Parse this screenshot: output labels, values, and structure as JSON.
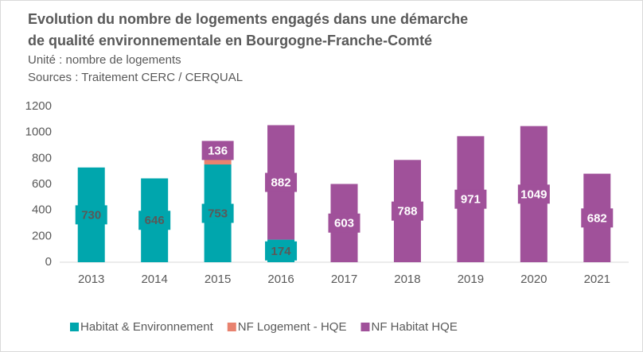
{
  "chart_data": {
    "type": "stacked_bar",
    "title": [
      "Evolution  du nombre de logements engagés dans une démarche",
      "de qualité environnementale en Bourgogne-Franche-Comté"
    ],
    "subtitle": [
      "Unité : nombre de logements",
      "Sources : Traitement CERC  /  CERQUAL"
    ],
    "categories": [
      "2013",
      "2014",
      "2015",
      "2016",
      "2017",
      "2018",
      "2019",
      "2020",
      "2021"
    ],
    "series": [
      {
        "name": "Habitat & Environnement",
        "color": "#00a6ad",
        "label_color": "#595959",
        "show_labels": true,
        "values": [
          730,
          646,
          753,
          174,
          null,
          null,
          null,
          null,
          null
        ]
      },
      {
        "name": "NF Logement - HQE",
        "color": "#e8826f",
        "show_labels": false,
        "values": [
          null,
          null,
          40,
          null,
          null,
          null,
          null,
          null,
          null
        ]
      },
      {
        "name": "NF Habitat HQE",
        "color": "#a0519a",
        "label_color": "#ffffff",
        "show_labels": true,
        "values": [
          null,
          null,
          136,
          882,
          603,
          788,
          971,
          1049,
          682
        ]
      }
    ],
    "ylim": [
      0,
      1200
    ],
    "yticks": [
      0,
      200,
      400,
      600,
      800,
      1000,
      1200
    ],
    "grid": false,
    "legend": "bottom"
  }
}
